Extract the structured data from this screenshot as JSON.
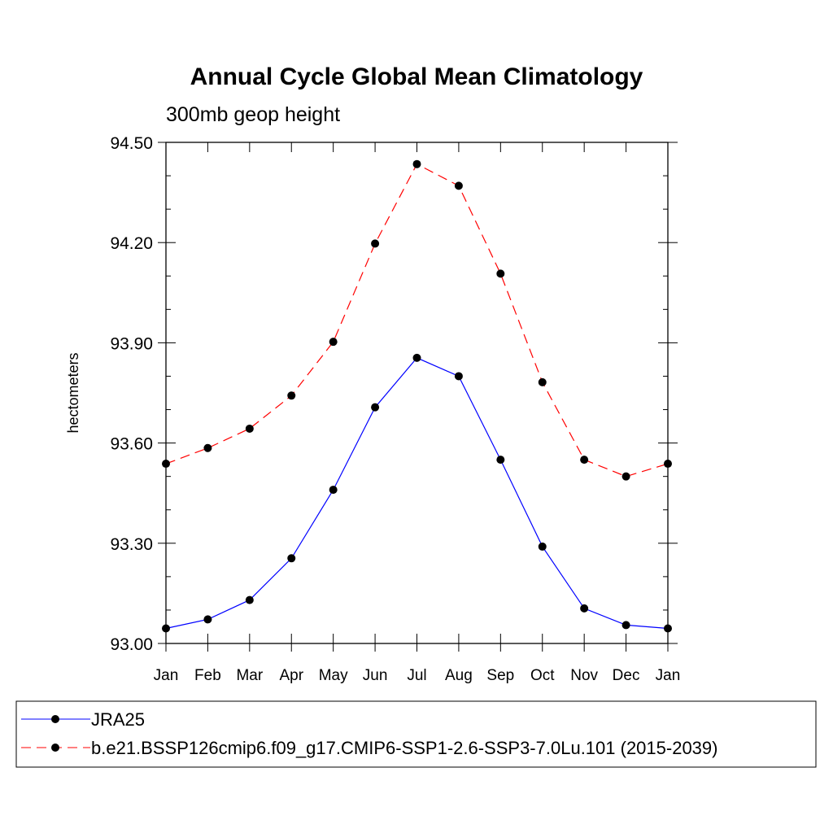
{
  "chart_data": {
    "type": "line",
    "title": "Annual Cycle Global Mean Climatology",
    "subtitle": "300mb geop height",
    "ylabel": "hectometers",
    "xlabel": "",
    "categories": [
      "Jan",
      "Feb",
      "Mar",
      "Apr",
      "May",
      "Jun",
      "Jul",
      "Aug",
      "Sep",
      "Oct",
      "Nov",
      "Dec",
      "Jan"
    ],
    "ylim": [
      93.0,
      94.5
    ],
    "yticks": [
      "93.00",
      "93.30",
      "93.60",
      "93.90",
      "94.20",
      "94.50"
    ],
    "series": [
      {
        "name": "JRA25",
        "color": "#0000ff",
        "dash": "solid",
        "marker": "filled-circle",
        "values": [
          93.045,
          93.072,
          93.13,
          93.255,
          93.46,
          93.707,
          93.855,
          93.8,
          93.55,
          93.29,
          93.105,
          93.055,
          93.045
        ]
      },
      {
        "name": "b.e21.BSSP126cmip6.f09_g17.CMIP6-SSP1-2.6-SSP3-7.0Lu.101 (2015-2039)",
        "color": "#ff0000",
        "dash": "dashed",
        "marker": "filled-circle",
        "values": [
          93.538,
          93.585,
          93.643,
          93.742,
          93.903,
          94.197,
          94.435,
          94.37,
          94.107,
          93.782,
          93.55,
          93.5,
          93.538
        ]
      }
    ],
    "legend_position": "bottom",
    "grid": false
  }
}
